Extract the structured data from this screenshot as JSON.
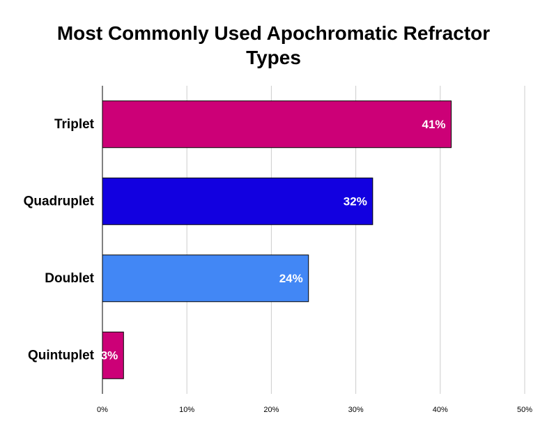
{
  "chart_data": {
    "type": "bar",
    "orientation": "horizontal",
    "title": "Most Commonly Used Apochromatic Refractor Types",
    "xlabel": "",
    "ylabel": "",
    "categories": [
      "Triplet",
      "Quadruplet",
      "Doublet",
      "Quintuplet"
    ],
    "values": [
      41.3,
      32,
      24.4,
      2.5
    ],
    "data_labels": [
      "41%",
      "32%",
      "24%",
      "3%"
    ],
    "bar_colors": [
      "#cc0077",
      "#1200e0",
      "#4287f5",
      "#cc0077"
    ],
    "xlim": [
      0,
      50
    ],
    "x_ticks": [
      0,
      10,
      20,
      30,
      40,
      50
    ],
    "x_tick_labels": [
      "0%",
      "10%",
      "20%",
      "30%",
      "40%",
      "50%"
    ],
    "grid": true,
    "legend": "none"
  }
}
